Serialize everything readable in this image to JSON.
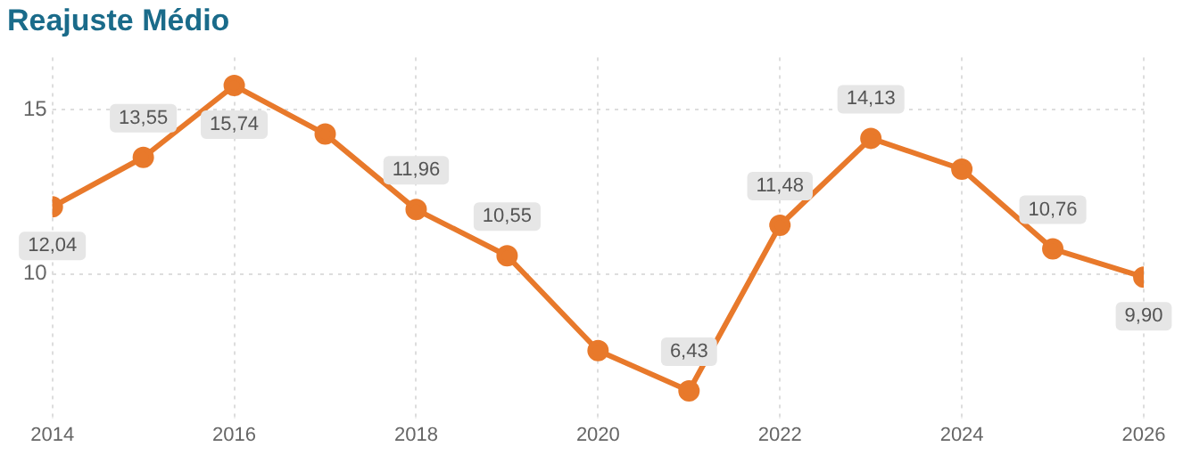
{
  "chart_data": {
    "type": "line",
    "title": "Reajuste Médio",
    "x": [
      2014,
      2015,
      2016,
      2017,
      2018,
      2019,
      2020,
      2021,
      2022,
      2023,
      2024,
      2025,
      2026
    ],
    "series": [
      {
        "color": "#e8792b",
        "values": [
          12.04,
          13.55,
          15.74,
          14.26,
          11.96,
          10.55,
          7.66,
          6.43,
          11.48,
          14.13,
          13.19,
          10.76,
          9.9
        ],
        "value_labels": [
          "12,04",
          "13,55",
          "15,74",
          null,
          "11,96",
          "10,55",
          null,
          "6,43",
          "11,48",
          "14,13",
          null,
          "10,76",
          "9,90"
        ]
      }
    ],
    "xlim": [
      2014,
      2026
    ],
    "xticks": [
      2014,
      2016,
      2018,
      2020,
      2022,
      2024,
      2026
    ],
    "ylim": [
      5.6,
      16.6
    ],
    "yticks": [
      10,
      15
    ],
    "grid": true,
    "legend": false,
    "marker": "circle",
    "line_style": "solid"
  }
}
